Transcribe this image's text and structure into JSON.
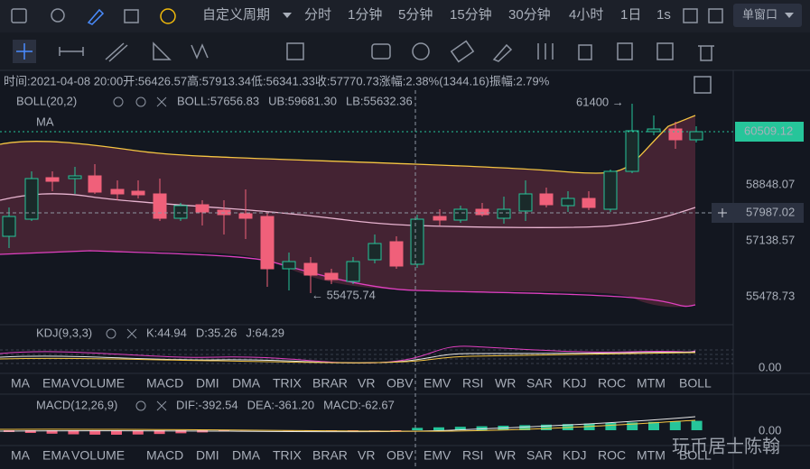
{
  "toolbar": {
    "period_menu": "自定义周期",
    "periods": [
      "分时",
      "1分钟",
      "5分钟",
      "15分钟",
      "30分钟",
      "4小时",
      "1日",
      "1s"
    ],
    "window": "单窗口"
  },
  "info": {
    "time": "时间:2021-04-08 20:00",
    "open_label": "开:",
    "open": "56426.57",
    "high_label": "高:",
    "high": "57913.34",
    "low_label": "低:",
    "low": "56341.33",
    "close_label": "收:",
    "close": "57770.73",
    "change_label": "涨幅:",
    "change": "2.38%(1344.16)",
    "amp_label": "振幅:",
    "amp": "2.79%"
  },
  "main": {
    "indicator": "BOLL(20,2)",
    "boll": "BOLL:57656.83",
    "ub": "UB:59681.30",
    "lb": "LB:55632.36",
    "ma": "MA",
    "price_labels": [
      "58848.07",
      "57138.57",
      "55478.73"
    ],
    "last_price": "60509.12",
    "cursor_price": "57987.02",
    "high_note": "61400 →",
    "low_note": "← 55475.74"
  },
  "kdj": {
    "indicator": "KDJ(9,3,3)",
    "k": "K:44.94",
    "d": "D:35.26",
    "j": "J:64.29",
    "zero": "0.00"
  },
  "macd": {
    "indicator": "MACD(12,26,9)",
    "dif": "DIF:-392.54",
    "dea": "DEA:-361.20",
    "macd": "MACD:-62.67",
    "zero": "0.00"
  },
  "tabs": [
    "MA",
    "EMA",
    "VOLUME",
    "MACD",
    "DMI",
    "DMA",
    "TRIX",
    "BRAR",
    "VR",
    "OBV",
    "EMV",
    "RSI",
    "WR",
    "SAR",
    "KDJ",
    "ROC",
    "MTM",
    "BOLL"
  ],
  "watermark": "玩币居士陈翰"
}
